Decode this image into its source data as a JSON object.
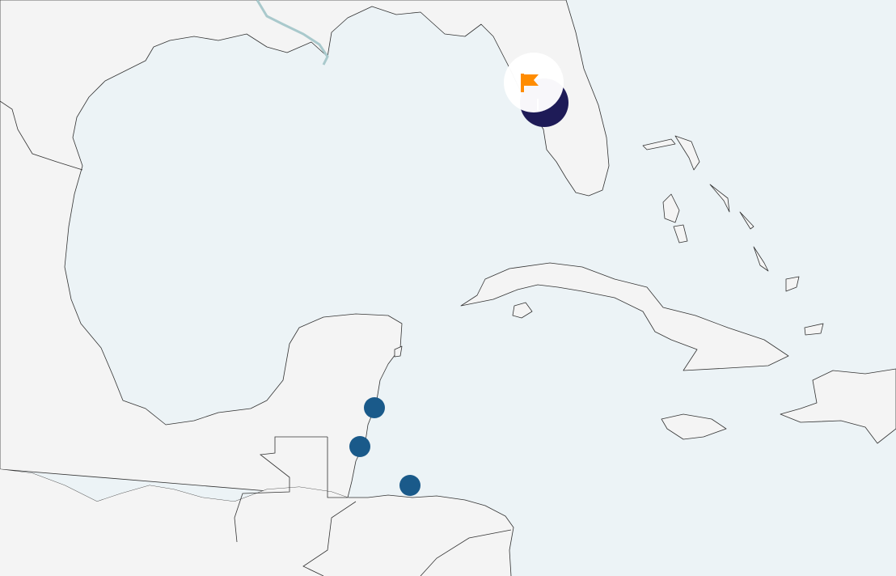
{
  "map": {
    "colors": {
      "sea": "#ecf3f6",
      "land": "#f4f4f4",
      "coastline": "#333333",
      "river": "#a9c9cc",
      "marker_small": "#1a5a8a",
      "marker_large": "#1e1b57",
      "flag": "#ff8c00",
      "flag_halo": "#ffffff"
    },
    "markers": [
      {
        "type": "flag-marker",
        "icon": "flag-icon",
        "size": "large"
      },
      {
        "type": "circle-marker",
        "size": "small"
      },
      {
        "type": "circle-marker",
        "size": "small"
      },
      {
        "type": "circle-marker",
        "size": "small"
      }
    ]
  }
}
